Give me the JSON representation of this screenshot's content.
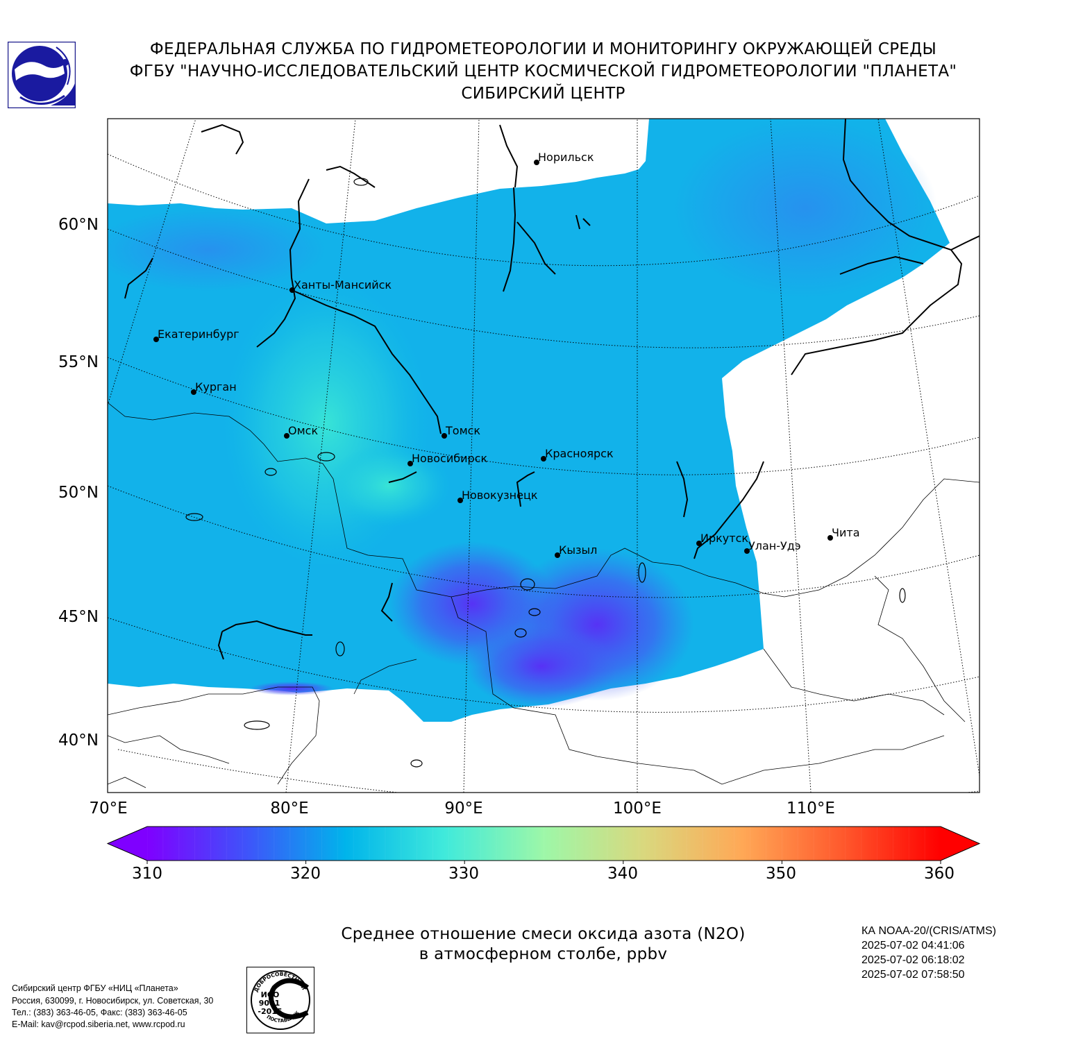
{
  "header": {
    "line1": "ФЕДЕРАЛЬНАЯ СЛУЖБА ПО ГИДРОМЕТЕОРОЛОГИИ И МОНИТОРИНГУ ОКРУЖАЮЩЕЙ СРЕДЫ",
    "line2": "ФГБУ \"НАУЧНО-ИССЛЕДОВАТЕЛЬСКИЙ ЦЕНТР КОСМИЧЕСКОЙ ГИДРОМЕТЕОРОЛОГИИ \"ПЛАНЕТА\"",
    "line3": "СИБИРСКИЙ ЦЕНТР"
  },
  "axes": {
    "lat_labels": [
      "60°N",
      "55°N",
      "50°N",
      "45°N",
      "40°N"
    ],
    "lon_labels": [
      "70°E",
      "80°E",
      "90°E",
      "100°E",
      "110°E"
    ]
  },
  "cities": [
    {
      "name": "Норильск"
    },
    {
      "name": "Ханты-Мансийск"
    },
    {
      "name": "Екатеринбург"
    },
    {
      "name": "Курган"
    },
    {
      "name": "Омск"
    },
    {
      "name": "Томск"
    },
    {
      "name": "Новосибирск"
    },
    {
      "name": "Красноярск"
    },
    {
      "name": "Новокузнецк"
    },
    {
      "name": "Кызыл"
    },
    {
      "name": "Иркутск"
    },
    {
      "name": "Улан-Удэ"
    },
    {
      "name": "Чита"
    }
  ],
  "colorbar": {
    "ticks": [
      "310",
      "320",
      "330",
      "340",
      "350",
      "360"
    ],
    "min": 310,
    "max": 360,
    "colors": [
      "#7f00ff",
      "#3f53fa",
      "#00b4eb",
      "#40eadb",
      "#9df7a8",
      "#d9d87e",
      "#ffa856",
      "#ff5a2d",
      "#ff0000"
    ]
  },
  "caption": {
    "line1": "Среднее отношение смеси оксида азота (N2O)",
    "line2": "в атмосферном столбе, ppbv"
  },
  "meta": {
    "satellite": "КА NOAA-20/(CRIS/ATMS)",
    "times": [
      "2025-07-02 04:41:06",
      "2025-07-02 06:18:02",
      "2025-07-02 07:58:50"
    ]
  },
  "contacts": {
    "lines": [
      "Сибирский центр ФГБУ «НИЦ «Планета»",
      "Россия, 630099, г. Новосибирск, ул. Советская, 30",
      "Тел.: (383) 363-46-05, Факс: (383) 363-46-05",
      "E-Mail: kav@rcpod.siberia.net, www.rcpod.ru"
    ]
  },
  "iso_badge": {
    "top_text": "ДОБРОСОВЕСТНЫЙ",
    "bottom_text": "ПОСТАВЩИК",
    "line1": "ИСО",
    "line2": "9001",
    "line3": "-2015"
  }
}
